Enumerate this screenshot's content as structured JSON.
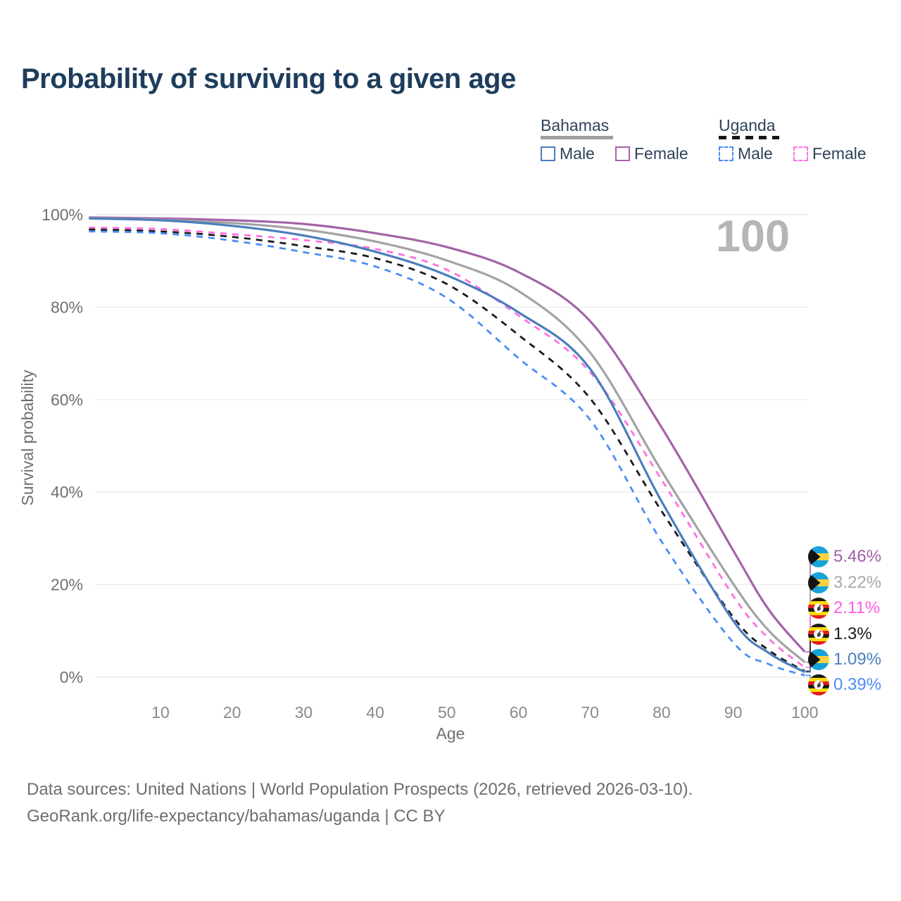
{
  "title": "Probability of surviving to a given age",
  "watermark_age": "100",
  "legend": {
    "groups": [
      {
        "label": "Bahamas",
        "line_style": "solid",
        "line_color": "#9e9e9e",
        "items": [
          {
            "label": "Male",
            "color": "#4a7ebc",
            "dashed": false
          },
          {
            "label": "Female",
            "color": "#a463a6",
            "dashed": false
          }
        ]
      },
      {
        "label": "Uganda",
        "line_style": "dashed",
        "line_color": "#161616",
        "items": [
          {
            "label": "Male",
            "color": "#4c8df6",
            "dashed": true
          },
          {
            "label": "Female",
            "color": "#ff70e2",
            "dashed": true
          }
        ]
      }
    ]
  },
  "chart_data": {
    "type": "line",
    "title": "Probability of surviving to a given age",
    "xlabel": "Age",
    "ylabel": "Survival probability",
    "xlim": [
      0,
      100
    ],
    "ylim": [
      0,
      100
    ],
    "xticks": [
      10,
      20,
      30,
      40,
      50,
      60,
      70,
      80,
      90,
      100
    ],
    "ytick_labels": [
      "0%",
      "20%",
      "40%",
      "60%",
      "80%",
      "100%"
    ],
    "grid": true,
    "legend_position": "top-right",
    "x": [
      0,
      10,
      20,
      30,
      40,
      50,
      60,
      70,
      80,
      90,
      95,
      100
    ],
    "series": [
      {
        "name": "Bahamas Female",
        "country": "Bahamas",
        "sex": "Female",
        "color": "#a463a6",
        "dash": "solid",
        "values": [
          99.4,
          99.2,
          98.8,
          98.0,
          96.0,
          93.0,
          87.6,
          77.0,
          54.0,
          27.4,
          14.5,
          5.46
        ],
        "end_label": "5.46%",
        "end_label_color": "#a05fa5",
        "flag": "bahamas"
      },
      {
        "name": "Bahamas Both sexes",
        "country": "Bahamas",
        "sex": "Both",
        "color": "#a3a3a3",
        "dash": "solid",
        "values": [
          99.3,
          98.9,
          98.2,
          96.8,
          94.2,
          90.1,
          83.5,
          70.2,
          44.6,
          20.2,
          10.0,
          3.22
        ],
        "end_label": "3.22%",
        "end_label_color": "#a9a9a9",
        "flag": "bahamas"
      },
      {
        "name": "Uganda Female",
        "country": "Uganda",
        "sex": "Female",
        "color": "#ff70e2",
        "dash": "dashed",
        "values": [
          97.2,
          96.9,
          95.8,
          94.5,
          92.6,
          88.1,
          78.2,
          66.0,
          42.7,
          17.6,
          8.3,
          2.11
        ],
        "end_label": "2.11%",
        "end_label_color": "#ff5ce2",
        "flag": "uganda"
      },
      {
        "name": "Uganda Both sexes",
        "country": "Uganda",
        "sex": "Both",
        "color": "#1a1a1a",
        "dash": "dashed",
        "values": [
          96.8,
          96.4,
          95.2,
          93.2,
          90.6,
          85.0,
          74.0,
          60.3,
          35.9,
          13.0,
          5.8,
          1.3
        ],
        "end_label": "1.3%",
        "end_label_color": "#1a1a1a",
        "flag": "uganda"
      },
      {
        "name": "Bahamas Male",
        "country": "Bahamas",
        "sex": "Male",
        "color": "#4a7ebc",
        "dash": "solid",
        "values": [
          99.2,
          98.8,
          97.6,
          95.5,
          92.0,
          86.9,
          78.9,
          66.7,
          38.0,
          12.2,
          5.2,
          1.09
        ],
        "end_label": "1.09%",
        "end_label_color": "#4a7ebc",
        "flag": "bahamas"
      },
      {
        "name": "Uganda Male",
        "country": "Uganda",
        "sex": "Male",
        "color": "#4c8df6",
        "dash": "dashed",
        "values": [
          96.4,
          96.0,
          94.4,
          91.9,
          88.8,
          82.0,
          69.0,
          55.7,
          29.3,
          7.5,
          2.8,
          0.39
        ],
        "end_label": "0.39%",
        "end_label_color": "#4c8df6",
        "flag": "uganda"
      }
    ]
  },
  "footer": {
    "line1": "Data sources: United Nations | World Population Prospects (2026, retrieved 2026-03-10).",
    "line2": "GeoRank.org/life-expectancy/bahamas/uganda | CC BY"
  }
}
